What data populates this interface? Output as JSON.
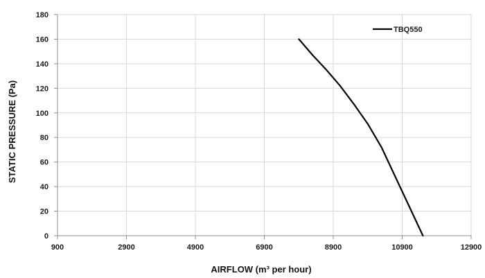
{
  "chart_data": {
    "type": "line",
    "xlabel": "AIRFLOW (m³ per hour)",
    "ylabel": "STATIC PRESSURE (Pa)",
    "xlim": [
      900,
      12900
    ],
    "ylim": [
      0,
      180
    ],
    "x_ticks": [
      900,
      2900,
      4900,
      6900,
      8900,
      10900,
      12900
    ],
    "y_ticks": [
      0,
      20,
      40,
      60,
      80,
      100,
      120,
      140,
      160,
      180
    ],
    "grid": true,
    "legend_position": "top-right",
    "series": [
      {
        "name": "TBQ550",
        "color": "#000000",
        "x": [
          7900,
          8300,
          8700,
          9100,
          9500,
          9900,
          10300,
          10700,
          11100,
          11500
        ],
        "y": [
          160,
          147,
          135,
          122,
          107,
          91,
          72,
          48,
          24,
          0
        ]
      }
    ]
  }
}
